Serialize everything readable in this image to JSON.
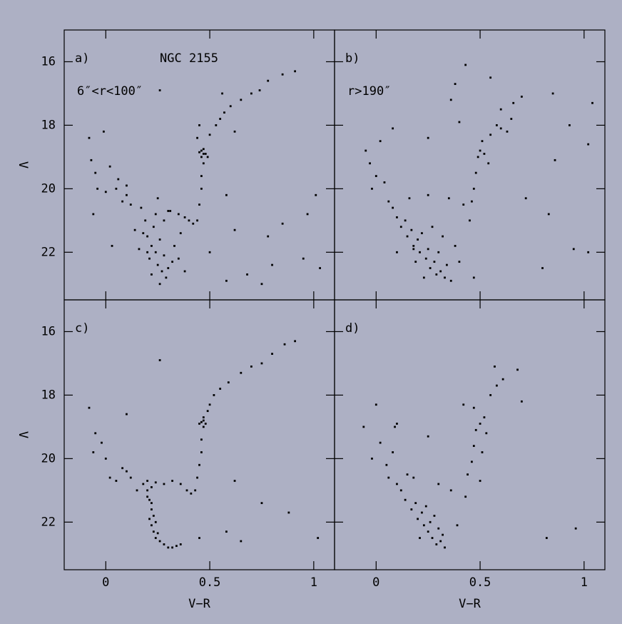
{
  "chart_data": [
    {
      "type": "scatter",
      "label": "a)",
      "title": "NGC 2155",
      "subtitle": "6″<r<100″",
      "ylabel": "V",
      "color": "#000000",
      "xlim": [
        -0.2,
        1.1
      ],
      "ylim": [
        23.5,
        15
      ],
      "xticks": [
        0,
        0.5,
        1
      ],
      "yticks": [
        16,
        18,
        20,
        22
      ],
      "x": [
        0.2,
        0.22,
        0.24,
        0.21,
        0.25,
        0.23,
        0.27,
        0.19,
        0.26,
        0.28,
        0.22,
        0.3,
        0.18,
        0.24,
        0.29,
        0.32,
        0.2,
        0.26,
        0.16,
        0.33,
        0.35,
        0.17,
        0.14,
        0.28,
        0.31,
        0.12,
        0.36,
        0.38,
        0.25,
        0.3,
        0.35,
        0.4,
        0.42,
        0.38,
        0.1,
        0.05,
        0.08,
        -0.07,
        -0.05,
        -0.04,
        0.0,
        -0.06,
        -0.08,
        0.02,
        0.06,
        0.1,
        0.44,
        0.45,
        0.46,
        0.46,
        0.47,
        0.47,
        0.46,
        0.48,
        0.45,
        0.47,
        0.49,
        0.46,
        0.44,
        0.45,
        0.5,
        0.53,
        0.57,
        0.6,
        0.65,
        0.7,
        0.74,
        0.78,
        0.85,
        0.91,
        0.56,
        0.55,
        0.58,
        0.62,
        0.78,
        0.85,
        0.95,
        1.03,
        0.97,
        0.68,
        0.75,
        0.8,
        0.58,
        0.5,
        0.03,
        -0.01,
        0.62,
        0.26,
        1.01
      ],
      "values": [
        21.5,
        21.8,
        22.0,
        22.2,
        22.4,
        21.2,
        22.6,
        21.0,
        21.6,
        22.1,
        22.7,
        22.5,
        21.4,
        20.8,
        22.8,
        22.3,
        22.0,
        23.0,
        21.9,
        21.8,
        22.2,
        20.6,
        21.3,
        21.0,
        20.7,
        20.5,
        21.4,
        22.6,
        20.3,
        20.7,
        20.8,
        21.0,
        21.1,
        20.9,
        20.2,
        20.0,
        20.4,
        19.1,
        19.5,
        20.0,
        20.1,
        20.8,
        18.4,
        19.3,
        19.7,
        19.9,
        21.0,
        20.5,
        20.0,
        19.6,
        19.2,
        18.9,
        18.8,
        18.9,
        18.85,
        18.75,
        19.0,
        19.0,
        18.4,
        18.0,
        18.3,
        18.0,
        17.6,
        17.4,
        17.2,
        17.0,
        16.9,
        16.6,
        16.4,
        16.3,
        17.0,
        17.8,
        20.2,
        21.3,
        21.5,
        21.1,
        22.2,
        22.5,
        20.8,
        22.7,
        23.0,
        22.4,
        22.9,
        22.0,
        21.8,
        18.2,
        18.2,
        16.9,
        20.2
      ]
    },
    {
      "type": "scatter",
      "label": "b)",
      "subtitle": "r>190″",
      "color": "#000000",
      "xlim": [
        -0.2,
        1.1
      ],
      "ylim": [
        23.5,
        15
      ],
      "xticks": [
        0,
        0.5,
        1
      ],
      "yticks": [
        16,
        18,
        20,
        22
      ],
      "x": [
        -0.05,
        -0.03,
        0.0,
        0.02,
        -0.02,
        0.04,
        0.06,
        0.08,
        0.1,
        0.12,
        0.14,
        0.15,
        0.17,
        0.18,
        0.2,
        0.21,
        0.22,
        0.24,
        0.25,
        0.26,
        0.28,
        0.29,
        0.3,
        0.31,
        0.33,
        0.34,
        0.36,
        0.23,
        0.19,
        0.27,
        0.32,
        0.38,
        0.4,
        0.16,
        0.25,
        0.35,
        0.42,
        0.45,
        0.46,
        0.47,
        0.48,
        0.49,
        0.5,
        0.52,
        0.54,
        0.51,
        0.55,
        0.58,
        0.6,
        0.63,
        0.65,
        0.55,
        0.6,
        0.66,
        0.38,
        0.36,
        0.4,
        0.43,
        0.7,
        0.85,
        0.93,
        1.04,
        1.02,
        0.86,
        0.72,
        0.83,
        0.95,
        1.02,
        0.8,
        0.47,
        0.18,
        0.1,
        0.25,
        0.08
      ],
      "values": [
        18.8,
        19.2,
        19.6,
        18.5,
        20.0,
        19.8,
        20.4,
        20.6,
        20.9,
        21.2,
        21.0,
        21.5,
        21.3,
        21.8,
        21.6,
        22.0,
        21.4,
        22.2,
        21.9,
        22.5,
        22.3,
        22.7,
        22.0,
        22.6,
        22.8,
        22.4,
        22.9,
        22.8,
        22.3,
        21.2,
        21.5,
        21.8,
        22.3,
        20.3,
        20.2,
        20.3,
        20.5,
        21.0,
        20.4,
        20.0,
        19.5,
        19.0,
        18.8,
        18.9,
        19.2,
        18.5,
        18.3,
        18.0,
        18.1,
        18.2,
        17.8,
        16.5,
        17.5,
        17.3,
        16.7,
        17.2,
        17.9,
        16.1,
        17.1,
        17.0,
        18.0,
        17.3,
        18.6,
        19.1,
        20.3,
        20.8,
        21.9,
        22.0,
        22.5,
        22.8,
        21.9,
        22.0,
        18.4,
        18.1
      ]
    },
    {
      "type": "scatter",
      "label": "c)",
      "xlabel": "V−R",
      "ylabel": "V",
      "color": "#000000",
      "xlim": [
        -0.2,
        1.1
      ],
      "ylim": [
        23.5,
        15
      ],
      "xticks": [
        0,
        0.5,
        1
      ],
      "yticks": [
        16,
        18,
        20,
        22
      ],
      "x": [
        0.2,
        0.21,
        0.22,
        0.21,
        0.22,
        0.23,
        0.24,
        0.26,
        0.28,
        0.3,
        0.32,
        0.34,
        0.22,
        0.23,
        0.2,
        0.24,
        0.25,
        0.22,
        0.2,
        0.18,
        0.24,
        0.28,
        0.32,
        0.36,
        0.39,
        0.41,
        0.43,
        0.44,
        0.45,
        0.46,
        0.46,
        0.47,
        0.46,
        0.47,
        0.48,
        0.45,
        0.47,
        0.49,
        0.52,
        0.55,
        0.59,
        0.65,
        0.7,
        0.75,
        0.8,
        0.86,
        0.91,
        0.5,
        0.1,
        0.12,
        0.15,
        0.08,
        0.05,
        0.02,
        0.0,
        -0.02,
        -0.05,
        -0.06,
        -0.08,
        0.1,
        0.26,
        0.45,
        0.58,
        0.62,
        0.75,
        0.88,
        1.02,
        0.65,
        0.36
      ],
      "values": [
        21.0,
        21.3,
        21.6,
        21.9,
        22.1,
        22.3,
        22.5,
        22.6,
        22.7,
        22.8,
        22.8,
        22.75,
        21.4,
        21.8,
        21.2,
        22.0,
        22.35,
        20.9,
        20.7,
        20.8,
        20.75,
        20.8,
        20.7,
        20.8,
        21.0,
        21.1,
        21.0,
        20.6,
        20.2,
        19.8,
        19.4,
        19.0,
        18.85,
        18.8,
        18.9,
        18.9,
        18.7,
        18.5,
        18.0,
        17.8,
        17.6,
        17.3,
        17.1,
        17.0,
        16.7,
        16.4,
        16.3,
        18.3,
        20.4,
        20.6,
        21.0,
        20.3,
        20.7,
        20.6,
        20.0,
        19.5,
        19.2,
        19.8,
        18.4,
        18.6,
        16.9,
        22.5,
        22.3,
        20.7,
        21.4,
        21.7,
        22.5,
        22.6,
        22.7
      ]
    },
    {
      "type": "scatter",
      "label": "d)",
      "xlabel": "V−R",
      "color": "#000000",
      "xlim": [
        -0.2,
        1.1
      ],
      "ylim": [
        23.5,
        15
      ],
      "xticks": [
        0,
        0.5,
        1
      ],
      "yticks": [
        16,
        18,
        20,
        22
      ],
      "x": [
        -0.06,
        0.0,
        -0.02,
        0.02,
        0.05,
        0.08,
        0.1,
        0.12,
        0.14,
        0.15,
        0.17,
        0.19,
        0.2,
        0.22,
        0.23,
        0.24,
        0.25,
        0.26,
        0.27,
        0.28,
        0.29,
        0.3,
        0.31,
        0.32,
        0.33,
        0.21,
        0.18,
        0.09,
        0.06,
        0.3,
        0.36,
        0.39,
        0.43,
        0.44,
        0.46,
        0.47,
        0.48,
        0.5,
        0.52,
        0.53,
        0.51,
        0.42,
        0.47,
        0.55,
        0.58,
        0.61,
        0.68,
        0.7,
        0.57,
        0.5,
        0.82,
        0.96,
        0.1,
        0.25
      ],
      "values": [
        19.0,
        18.3,
        20.0,
        19.5,
        20.2,
        19.8,
        20.8,
        21.0,
        21.3,
        20.5,
        21.6,
        21.4,
        21.9,
        21.7,
        22.1,
        21.5,
        22.3,
        22.0,
        22.5,
        21.8,
        22.7,
        22.2,
        22.6,
        22.4,
        22.8,
        22.5,
        20.6,
        19.0,
        20.6,
        20.8,
        21.0,
        22.1,
        21.2,
        20.5,
        20.1,
        19.6,
        19.1,
        18.9,
        18.7,
        19.2,
        19.8,
        18.3,
        18.4,
        18.0,
        17.7,
        17.5,
        17.2,
        18.2,
        17.1,
        20.7,
        22.5,
        22.2,
        18.9,
        19.3
      ]
    }
  ]
}
